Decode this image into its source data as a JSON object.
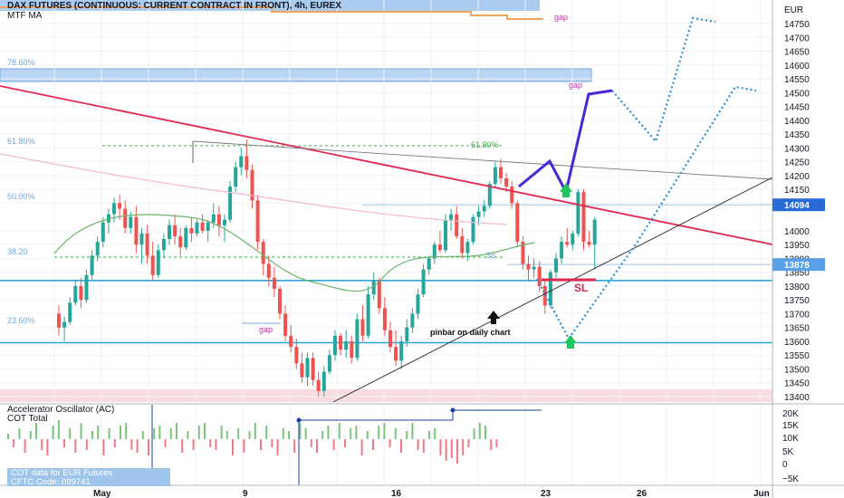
{
  "header": {
    "title": "DAX FUTURES (CONTINUOUS: CURRENT CONTRACT IN FRONT), 4h, EUREX",
    "indicator": "MTF MA"
  },
  "colors": {
    "up": "#26a69a",
    "down": "#ef5350",
    "trendline": "#e0294f",
    "support": "#2ea8d6",
    "fib": "#6fa8dc",
    "projection_solid": "#4b26d6",
    "projection_dotted": "#2a8fd8",
    "arrow_green": "#22c55e"
  },
  "annotations": {
    "gap_1": "gap",
    "gap_2": "gap",
    "gap_3": "gap",
    "sl": "SL",
    "pinbar": "pinbar on daily chart",
    "fib_786": "78.60%",
    "fib_618_left": "61.80%",
    "fib_618_right": "61.80%",
    "fib_50": "50.00%",
    "fib_382": "38.20",
    "fib_236": "23.60%",
    "fib_382_short": "38"
  },
  "oscillator": {
    "title": "Accelerator Oscillator (AC)",
    "cot_title": "COT Total",
    "cot_note_1": "COT data for EUR Futures",
    "cot_note_2": "CFTC Code: 099741",
    "y_ticks": [
      "20K",
      "15K",
      "10K",
      "5K",
      "0",
      "−5K"
    ]
  },
  "chart_data": {
    "type": "candlestick",
    "title": "DAX FUTURES (CONTINUOUS: CURRENT CONTRACT IN FRONT), 4h, EUREX",
    "currency": "EUR",
    "y_ticks": [
      14750,
      14700,
      14650,
      14600,
      14550,
      14500,
      14450,
      14400,
      14350,
      14300,
      14250,
      14200,
      14150,
      14100,
      14000,
      13950,
      13900,
      13850,
      13800,
      13750,
      13700,
      13650,
      13600,
      13550,
      13500,
      13450,
      13400
    ],
    "ylim": [
      13380,
      14800
    ],
    "x_ticks": [
      "May",
      "9",
      "16",
      "23",
      "26",
      "Jun"
    ],
    "price_tags": [
      14094,
      13878
    ],
    "levels": {
      "support": [
        13820,
        13595
      ],
      "fib_786": 14567,
      "fib_618": 14308,
      "fib_382": 13905
    },
    "candles": [
      [
        13700,
        13730,
        13620,
        13650
      ],
      [
        13650,
        13690,
        13600,
        13670
      ],
      [
        13670,
        13760,
        13660,
        13740
      ],
      [
        13740,
        13820,
        13730,
        13800
      ],
      [
        13800,
        13830,
        13720,
        13750
      ],
      [
        13750,
        13860,
        13740,
        13840
      ],
      [
        13840,
        13930,
        13820,
        13910
      ],
      [
        13910,
        13980,
        13890,
        13960
      ],
      [
        13960,
        14050,
        13940,
        14030
      ],
      [
        14030,
        14080,
        13990,
        14060
      ],
      [
        14060,
        14120,
        14030,
        14100
      ],
      [
        14100,
        14130,
        14040,
        14080
      ],
      [
        14080,
        14110,
        13990,
        14010
      ],
      [
        14010,
        14070,
        13990,
        14050
      ],
      [
        14050,
        14090,
        13920,
        13950
      ],
      [
        13950,
        14010,
        13880,
        13990
      ],
      [
        13990,
        14020,
        13880,
        13910
      ],
      [
        13910,
        13960,
        13820,
        13840
      ],
      [
        13840,
        13950,
        13830,
        13930
      ],
      [
        13930,
        13990,
        13900,
        13970
      ],
      [
        13970,
        14040,
        13950,
        14020
      ],
      [
        14020,
        14060,
        13950,
        13980
      ],
      [
        13980,
        14010,
        13910,
        13940
      ],
      [
        13940,
        14020,
        13930,
        14010
      ],
      [
        14010,
        14050,
        13960,
        13990
      ],
      [
        13990,
        14040,
        13980,
        14030
      ],
      [
        14030,
        14060,
        13990,
        14000
      ],
      [
        14000,
        14040,
        13960,
        14030
      ],
      [
        14030,
        14100,
        14010,
        14060
      ],
      [
        14060,
        14090,
        13980,
        14020
      ],
      [
        14020,
        14060,
        13960,
        14040
      ],
      [
        14040,
        14180,
        14030,
        14160
      ],
      [
        14160,
        14250,
        14140,
        14230
      ],
      [
        14230,
        14300,
        14200,
        14270
      ],
      [
        14270,
        14330,
        14190,
        14220
      ],
      [
        14220,
        14240,
        14080,
        14110
      ],
      [
        14110,
        14130,
        13930,
        13960
      ],
      [
        13960,
        13970,
        13840,
        13880
      ],
      [
        13880,
        13910,
        13800,
        13830
      ],
      [
        13830,
        13870,
        13760,
        13790
      ],
      [
        13790,
        13800,
        13680,
        13700
      ],
      [
        13700,
        13730,
        13600,
        13620
      ],
      [
        13620,
        13660,
        13560,
        13580
      ],
      [
        13580,
        13610,
        13500,
        13520
      ],
      [
        13520,
        13560,
        13450,
        13470
      ],
      [
        13470,
        13560,
        13440,
        13540
      ],
      [
        13540,
        13560,
        13440,
        13460
      ],
      [
        13460,
        13490,
        13400,
        13420
      ],
      [
        13420,
        13510,
        13400,
        13490
      ],
      [
        13490,
        13570,
        13480,
        13550
      ],
      [
        13550,
        13640,
        13530,
        13620
      ],
      [
        13620,
        13630,
        13550,
        13570
      ],
      [
        13570,
        13640,
        13540,
        13600
      ],
      [
        13600,
        13620,
        13520,
        13540
      ],
      [
        13540,
        13700,
        13530,
        13680
      ],
      [
        13680,
        13730,
        13600,
        13620
      ],
      [
        13620,
        13800,
        13610,
        13770
      ],
      [
        13770,
        13850,
        13750,
        13820
      ],
      [
        13820,
        13830,
        13700,
        13720
      ],
      [
        13720,
        13760,
        13620,
        13640
      ],
      [
        13640,
        13670,
        13560,
        13580
      ],
      [
        13580,
        13640,
        13510,
        13530
      ],
      [
        13530,
        13620,
        13500,
        13600
      ],
      [
        13600,
        13680,
        13580,
        13650
      ],
      [
        13650,
        13720,
        13630,
        13700
      ],
      [
        13700,
        13790,
        13680,
        13770
      ],
      [
        13770,
        13880,
        13760,
        13860
      ],
      [
        13860,
        13910,
        13840,
        13900
      ],
      [
        13900,
        13960,
        13880,
        13950
      ],
      [
        13950,
        14000,
        13920,
        13930
      ],
      [
        13930,
        14060,
        13920,
        14040
      ],
      [
        14040,
        14080,
        14000,
        14060
      ],
      [
        14060,
        14090,
        13970,
        13980
      ],
      [
        13980,
        14010,
        13900,
        13920
      ],
      [
        13920,
        13970,
        13890,
        13960
      ],
      [
        13960,
        14060,
        13950,
        14050
      ],
      [
        14050,
        14090,
        14020,
        14070
      ],
      [
        14070,
        14110,
        14050,
        14090
      ],
      [
        14090,
        14180,
        14080,
        14170
      ],
      [
        14170,
        14250,
        14160,
        14230
      ],
      [
        14230,
        14260,
        14170,
        14190
      ],
      [
        14190,
        14210,
        14140,
        14160
      ],
      [
        14160,
        14180,
        14080,
        14100
      ],
      [
        14100,
        14110,
        13940,
        13960
      ],
      [
        13960,
        13980,
        13860,
        13880
      ],
      [
        13880,
        13910,
        13820,
        13860
      ],
      [
        13860,
        13900,
        13830,
        13870
      ],
      [
        13870,
        13890,
        13780,
        13800
      ],
      [
        13800,
        13820,
        13700,
        13730
      ],
      [
        13730,
        13860,
        13720,
        13850
      ],
      [
        13850,
        13920,
        13830,
        13900
      ],
      [
        13900,
        13980,
        13880,
        13960
      ],
      [
        13960,
        14010,
        13940,
        13950
      ],
      [
        13950,
        14000,
        13930,
        13990
      ],
      [
        13990,
        14150,
        13980,
        14140
      ],
      [
        14140,
        14150,
        13930,
        13960
      ],
      [
        13960,
        14000,
        13940,
        13950
      ],
      [
        13950,
        14050,
        13860,
        14040
      ]
    ],
    "projections": [
      {
        "name": "scenario solid",
        "points": [
          [
            14150,
            0
          ],
          [
            14230,
            0
          ],
          [
            14140,
            0
          ],
          [
            14500,
            0
          ]
        ]
      },
      {
        "name": "scenario dotted top",
        "points": [
          [
            14500,
            0
          ],
          [
            14320,
            0
          ],
          [
            14770,
            0
          ]
        ]
      },
      {
        "name": "scenario dotted low",
        "points": [
          [
            13820,
            0
          ],
          [
            13600,
            0
          ],
          [
            14520,
            0
          ]
        ]
      }
    ],
    "oscillator_values": [
      2,
      -3,
      4,
      -5,
      3,
      6,
      -4,
      -6,
      5,
      7,
      -3,
      4,
      -5,
      6,
      -4,
      3,
      5,
      -6,
      4,
      -3,
      5,
      6,
      -4,
      -5,
      3,
      -6,
      4,
      5,
      -3,
      4,
      6,
      -5,
      3,
      -4,
      5,
      6,
      -3,
      -4,
      5,
      3,
      -6,
      4,
      -5,
      3,
      6,
      -4,
      5,
      -3,
      -6,
      4,
      3,
      -5,
      6,
      4,
      -3,
      -5,
      3,
      5,
      -4,
      6,
      -3,
      4,
      5,
      -6,
      3,
      -4,
      5,
      6,
      -3,
      4,
      -5,
      3,
      6,
      -4,
      -5,
      3,
      4,
      -6,
      -8,
      -7,
      -9,
      -6,
      -3,
      4,
      6,
      5,
      -4,
      -3
    ]
  }
}
